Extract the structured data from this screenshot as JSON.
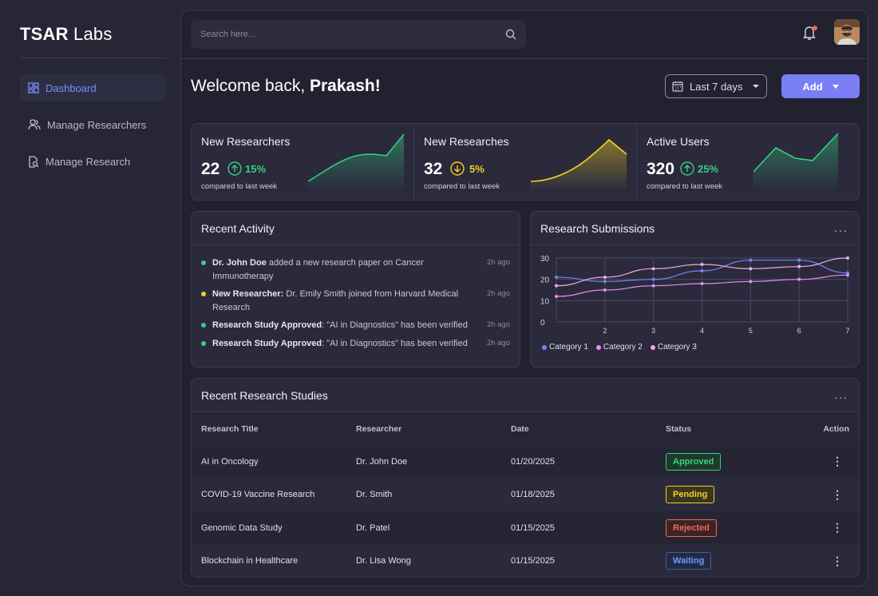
{
  "brand": {
    "bold": "TSAR",
    "light": " Labs"
  },
  "sidebar": {
    "items": [
      {
        "label": "Dashboard",
        "icon": "dashboard-icon",
        "active": true
      },
      {
        "label": "Manage Researchers",
        "icon": "users-icon",
        "active": false
      },
      {
        "label": "Manage Research",
        "icon": "document-search-icon",
        "active": false
      }
    ]
  },
  "topbar": {
    "search_placeholder": "Search here..."
  },
  "header": {
    "welcome_prefix": "Welcome back, ",
    "user_name": "Prakash!",
    "date_range": "Last 7 days",
    "add_label": "Add"
  },
  "stats": [
    {
      "title": "New Researchers",
      "value": "22",
      "change": "15%",
      "direction": "up",
      "color": "#35d07f",
      "subtitle": "compared to last week"
    },
    {
      "title": "New Researches",
      "value": "32",
      "change": "5%",
      "direction": "down",
      "color": "#f5d020",
      "subtitle": "compared to last week"
    },
    {
      "title": "Active Users",
      "value": "320",
      "change": "25%",
      "direction": "up",
      "color": "#35d07f",
      "subtitle": "compared to last week"
    }
  ],
  "activity": {
    "title": "Recent Activity",
    "items": [
      {
        "bold": "Dr. John Doe",
        "text": " added a new research paper on Cancer Immunotherapy",
        "time": "2h ago",
        "color": "#35d07f"
      },
      {
        "bold": "New Researcher:",
        "text": " Dr. Emily Smith joined from Harvard Medical Research",
        "time": "2h ago",
        "color": "#f5d020"
      },
      {
        "bold": "Research Study Approved",
        "text": ": \"AI in Diagnostics\" has been verified",
        "time": "2h ago",
        "color": "#35d07f"
      },
      {
        "bold": "Research Study Approved",
        "text": ": \"AI in Diagnostics\" has been verified",
        "time": "2h ago",
        "color": "#35d07f"
      }
    ]
  },
  "submissions": {
    "title": "Research Submissions",
    "more": "···",
    "chart_data": {
      "type": "line",
      "x": [
        1,
        2,
        3,
        4,
        5,
        6,
        7
      ],
      "x_tick_labels": [
        "2",
        "3",
        "4",
        "5",
        "6",
        "7"
      ],
      "y_tick_labels": [
        "0",
        "10",
        "20",
        "30"
      ],
      "ylim": [
        0,
        30
      ],
      "series": [
        {
          "name": "Category 1",
          "color": "#7b7ff5",
          "values": [
            21,
            19,
            20,
            24,
            29,
            29,
            23
          ]
        },
        {
          "name": "Category 2",
          "color": "#e98bf0",
          "values": [
            17,
            21,
            25,
            27,
            25,
            26,
            30
          ]
        },
        {
          "name": "Category 3",
          "color": "#e98bf0",
          "values": [
            12,
            15,
            17,
            18,
            19,
            20,
            22
          ]
        }
      ]
    }
  },
  "studies": {
    "title": "Recent Research Studies",
    "more": "···",
    "columns": [
      "Research Title",
      "Researcher",
      "Date",
      "Status",
      "Action"
    ],
    "rows": [
      {
        "title": "AI in Oncology",
        "researcher": "Dr. John Doe",
        "date": "01/20/2025",
        "status": "Approved",
        "status_color": "#35d07f"
      },
      {
        "title": "COVID-19 Vaccine Research",
        "researcher": "Dr. Smith",
        "date": "01/18/2025",
        "status": "Pending",
        "status_color": "#f5d020"
      },
      {
        "title": "Genomic Data Study",
        "researcher": "Dr. Patel",
        "date": "01/15/2025",
        "status": "Rejected",
        "status_color": "#f2665a"
      },
      {
        "title": "Blockchain in Healthcare",
        "researcher": "Dr. Lisa Wong",
        "date": "01/15/2025",
        "status": "Waiting",
        "status_color": "#6e9bff"
      }
    ],
    "action_glyph": "⋮"
  }
}
